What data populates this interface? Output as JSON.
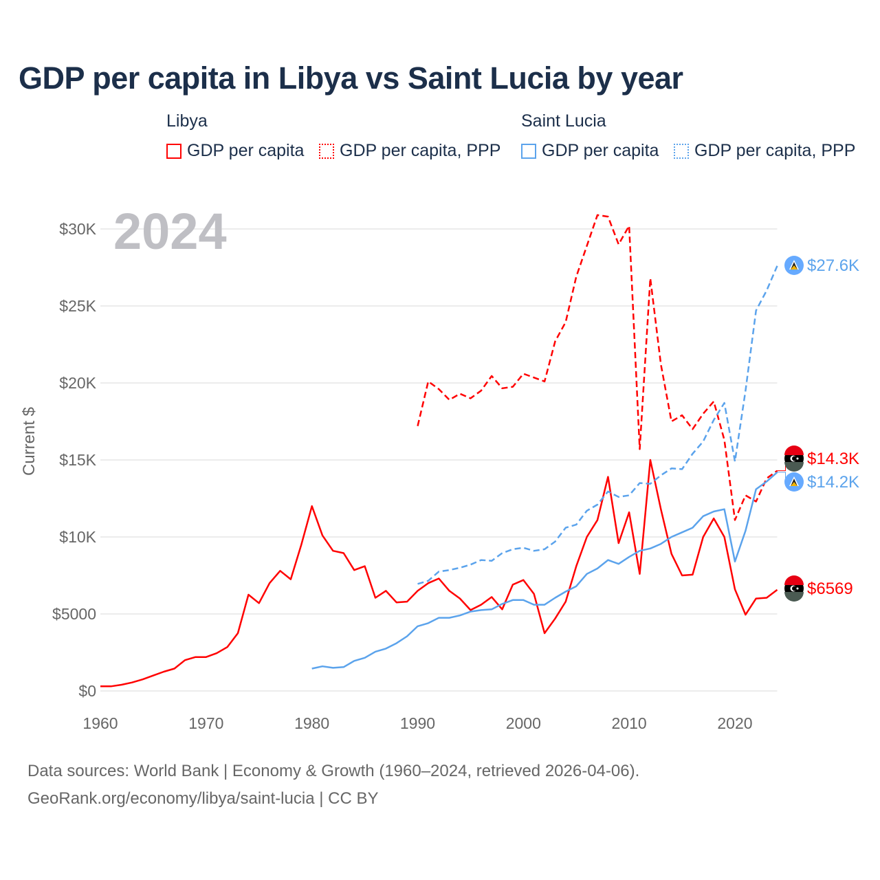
{
  "title": "GDP per capita in Libya vs Saint Lucia by year",
  "legend": {
    "groups": [
      "Libya",
      "Saint Lucia"
    ],
    "items": [
      "GDP per capita",
      "GDP per capita, PPP",
      "GDP per capita",
      "GDP per capita, PPP"
    ]
  },
  "year_watermark": "2024",
  "footer": {
    "line1": "Data sources: World Bank | Economy & Growth (1960–2024, retrieved 2026-04-06).",
    "line2": "GeoRank.org/economy/libya/saint-lucia | CC BY"
  },
  "colors": {
    "libya": "#ff0000",
    "saint_lucia": "#5ba3ec",
    "grid": "#e6e6e6",
    "text": "#666666",
    "title": "#1c2f4a"
  },
  "chart_data": {
    "type": "line",
    "title": "GDP per capita in Libya vs Saint Lucia by year",
    "xlabel": "",
    "ylabel": "Current $",
    "xlim": [
      1960,
      2024
    ],
    "ylim": [
      0,
      30000
    ],
    "x_ticks": [
      1960,
      1970,
      1980,
      1990,
      2000,
      2010,
      2020
    ],
    "x_tick_labels": [
      "1960",
      "1970",
      "1980",
      "1990",
      "2000",
      "2010",
      "2020"
    ],
    "y_ticks": [
      0,
      5000,
      10000,
      15000,
      20000,
      25000,
      30000
    ],
    "y_tick_labels": [
      "$0",
      "$5000",
      "$10K",
      "$15K",
      "$20K",
      "$25K",
      "$30K"
    ],
    "grid": true,
    "legend_placement": "top",
    "series": [
      {
        "name": "Libya GDP per capita",
        "country": "Libya",
        "dash": false,
        "color": "#ff0000",
        "start": 1960,
        "end_label": "$6569",
        "values": [
          300,
          300,
          400,
          550,
          750,
          1000,
          1250,
          1450,
          2000,
          2200,
          2200,
          2450,
          2850,
          3750,
          6250,
          5700,
          7000,
          7800,
          7250,
          9500,
          12000,
          10100,
          9100,
          8950,
          7850,
          8100,
          6050,
          6500,
          5750,
          5800,
          6500,
          7000,
          7300,
          6500,
          6000,
          5250,
          5600,
          6100,
          5300,
          6900,
          7200,
          6300,
          3750,
          4700,
          5800,
          8100,
          10000,
          11100,
          13900,
          9600,
          11600,
          7600,
          15000,
          11800,
          8900,
          7500,
          7550,
          10000,
          11200,
          10000,
          6600,
          4950,
          6000,
          6050,
          6569
        ]
      },
      {
        "name": "Libya GDP per capita, PPP",
        "country": "Libya",
        "dash": true,
        "color": "#ff0000",
        "start": 1990,
        "end_label": "$14.3K",
        "values": [
          17200,
          20100,
          19600,
          18900,
          19300,
          19000,
          19500,
          20450,
          19650,
          19750,
          20600,
          20350,
          20100,
          22700,
          23950,
          26900,
          28900,
          30900,
          30800,
          29000,
          30200,
          15700,
          26800,
          21200,
          17500,
          17900,
          17000,
          18000,
          18800,
          16300,
          11100,
          12700,
          12300,
          13800,
          14300
        ]
      },
      {
        "name": "Saint Lucia GDP per capita",
        "country": "Saint Lucia",
        "dash": false,
        "color": "#5ba3ec",
        "start": 1980,
        "end_label": "$14.2K",
        "values": [
          1450,
          1600,
          1500,
          1550,
          1950,
          2150,
          2550,
          2750,
          3100,
          3550,
          4200,
          4400,
          4750,
          4750,
          4900,
          5150,
          5250,
          5300,
          5650,
          5900,
          5900,
          5600,
          5600,
          6050,
          6450,
          6800,
          7600,
          7950,
          8500,
          8250,
          8700,
          9100,
          9250,
          9550,
          10000,
          10300,
          10600,
          11350,
          11650,
          11800,
          8400,
          10400,
          13100,
          13600,
          14200
        ]
      },
      {
        "name": "Saint Lucia GDP per capita, PPP",
        "country": "Saint Lucia",
        "dash": true,
        "color": "#5ba3ec",
        "start": 1990,
        "end_label": "$27.6K",
        "values": [
          6950,
          7150,
          7750,
          7850,
          8000,
          8200,
          8500,
          8450,
          8950,
          9200,
          9300,
          9100,
          9200,
          9700,
          10600,
          10800,
          11700,
          12100,
          12950,
          12600,
          12700,
          13500,
          13450,
          14000,
          14450,
          14400,
          15400,
          16200,
          17600,
          18700,
          14900,
          19500,
          24700,
          26000,
          27600
        ]
      }
    ]
  }
}
